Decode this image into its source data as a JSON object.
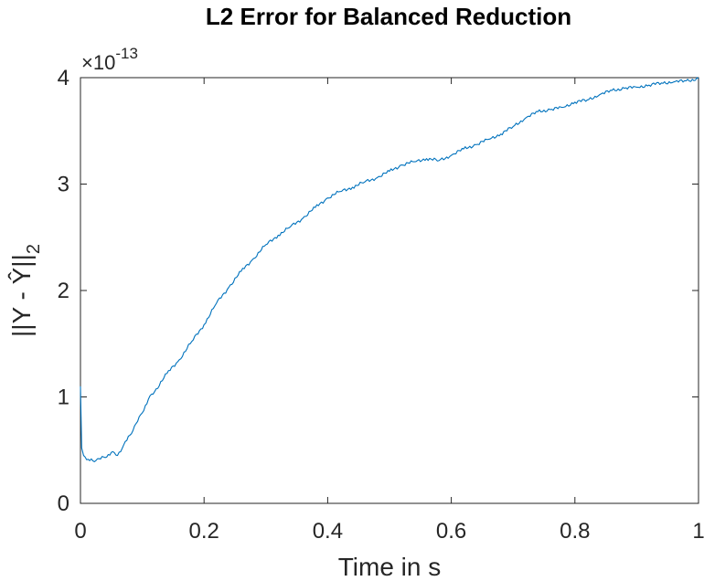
{
  "chart_data": {
    "type": "line",
    "title": "L2 Error for Balanced Reduction",
    "xlabel": "Time in s",
    "ylabel": "||Y - Ŷ||",
    "ylabel_subscript": "2",
    "y_exponent_prefix": "×10",
    "y_exponent": "-13",
    "xlim": [
      0,
      1
    ],
    "ylim": [
      0,
      4
    ],
    "xticks": [
      0,
      0.2,
      0.4,
      0.6,
      0.8,
      1
    ],
    "xtick_labels": [
      "0",
      "0.2",
      "0.4",
      "0.6",
      "0.8",
      "1"
    ],
    "yticks": [
      0,
      1,
      2,
      3,
      4
    ],
    "ytick_labels": [
      "0",
      "1",
      "2",
      "3",
      "4"
    ],
    "grid": false,
    "line_color": "#0072BD",
    "series": [
      {
        "x": [
          0,
          0.002,
          0.005,
          0.01,
          0.02,
          0.03,
          0.04,
          0.05,
          0.06,
          0.07,
          0.08,
          0.09,
          0.1,
          0.11,
          0.12,
          0.14,
          0.16,
          0.18,
          0.2,
          0.22,
          0.24,
          0.26,
          0.28,
          0.3,
          0.32,
          0.34,
          0.36,
          0.38,
          0.4,
          0.42,
          0.44,
          0.46,
          0.48,
          0.5,
          0.52,
          0.54,
          0.56,
          0.58,
          0.6,
          0.62,
          0.64,
          0.66,
          0.68,
          0.7,
          0.72,
          0.74,
          0.76,
          0.78,
          0.8,
          0.82,
          0.84,
          0.86,
          0.88,
          0.9,
          0.92,
          0.94,
          0.96,
          0.98,
          1.0
        ],
        "y": [
          1.1,
          0.52,
          0.45,
          0.41,
          0.4,
          0.42,
          0.43,
          0.48,
          0.45,
          0.55,
          0.64,
          0.75,
          0.85,
          0.98,
          1.05,
          1.22,
          1.35,
          1.52,
          1.68,
          1.88,
          2.03,
          2.18,
          2.3,
          2.43,
          2.52,
          2.6,
          2.68,
          2.78,
          2.87,
          2.93,
          2.97,
          3.02,
          3.06,
          3.12,
          3.18,
          3.21,
          3.24,
          3.22,
          3.27,
          3.33,
          3.37,
          3.42,
          3.47,
          3.54,
          3.62,
          3.68,
          3.7,
          3.72,
          3.77,
          3.79,
          3.84,
          3.88,
          3.9,
          3.91,
          3.93,
          3.95,
          3.96,
          3.97,
          3.99
        ]
      }
    ]
  }
}
